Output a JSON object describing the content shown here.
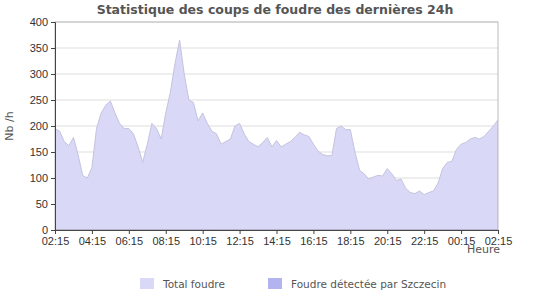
{
  "chart_data": {
    "type": "area",
    "title": "Statistique des coups de foudre des dernières 24h",
    "y_label": "Nb /h",
    "x_label": "Heure",
    "categories": [
      "02:15",
      null,
      null,
      null,
      null,
      null,
      null,
      null,
      "04:15",
      null,
      null,
      null,
      null,
      null,
      null,
      null,
      "06:15",
      null,
      null,
      null,
      null,
      null,
      null,
      null,
      "08:15",
      null,
      null,
      null,
      null,
      null,
      null,
      null,
      "10:15",
      null,
      null,
      null,
      null,
      null,
      null,
      null,
      "12:15",
      null,
      null,
      null,
      null,
      null,
      null,
      null,
      "14:15",
      null,
      null,
      null,
      null,
      null,
      null,
      null,
      "16:15",
      null,
      null,
      null,
      null,
      null,
      null,
      null,
      "18:15",
      null,
      null,
      null,
      null,
      null,
      null,
      null,
      "20:15",
      null,
      null,
      null,
      null,
      null,
      null,
      null,
      "22:15",
      null,
      null,
      null,
      null,
      null,
      null,
      null,
      "00:15",
      null,
      null,
      null,
      null,
      null,
      null,
      null,
      "02:15"
    ],
    "series": [
      {
        "name": "Total foudre",
        "color": "#d9d9f7",
        "values": [
          195,
          190,
          170,
          162,
          178,
          145,
          105,
          100,
          120,
          195,
          225,
          240,
          248,
          225,
          205,
          195,
          195,
          185,
          160,
          130,
          165,
          205,
          195,
          175,
          225,
          265,
          320,
          365,
          300,
          250,
          245,
          210,
          225,
          205,
          190,
          185,
          165,
          170,
          175,
          200,
          205,
          185,
          170,
          165,
          160,
          168,
          178,
          160,
          172,
          160,
          165,
          170,
          178,
          188,
          183,
          180,
          165,
          152,
          145,
          143,
          143,
          195,
          200,
          193,
          193,
          150,
          115,
          108,
          98,
          102,
          105,
          104,
          118,
          108,
          95,
          98,
          80,
          72,
          70,
          75,
          68,
          72,
          75,
          90,
          118,
          130,
          132,
          155,
          165,
          168,
          175,
          178,
          175,
          180,
          190,
          200,
          212
        ]
      },
      {
        "name": "Foudre détectée par Szczecin",
        "color": "#b3b3ef",
        "values": [
          0,
          0,
          0,
          0,
          0,
          0,
          0,
          0,
          0,
          0,
          0,
          0,
          0,
          0,
          0,
          0,
          0,
          0,
          0,
          0,
          0,
          0,
          0,
          0,
          0,
          0,
          0,
          0,
          0,
          0,
          0,
          0,
          0,
          0,
          0,
          0,
          0,
          0,
          0,
          0,
          0,
          0,
          0,
          0,
          0,
          0,
          0,
          0,
          0,
          0,
          0,
          0,
          0,
          0,
          0,
          0,
          0,
          0,
          0,
          0,
          0,
          0,
          0,
          0,
          0,
          0,
          0,
          0,
          0,
          0,
          0,
          0,
          0,
          0,
          0,
          0,
          0,
          0,
          0,
          0,
          0,
          0,
          0,
          0,
          0,
          0,
          0,
          0,
          0,
          0,
          0,
          0,
          0,
          0,
          0,
          0,
          0
        ]
      }
    ],
    "ylim": [
      0,
      400
    ],
    "yticks": [
      0,
      50,
      100,
      150,
      200,
      250,
      300,
      350,
      400
    ],
    "grid": true,
    "legend": "bottom"
  }
}
